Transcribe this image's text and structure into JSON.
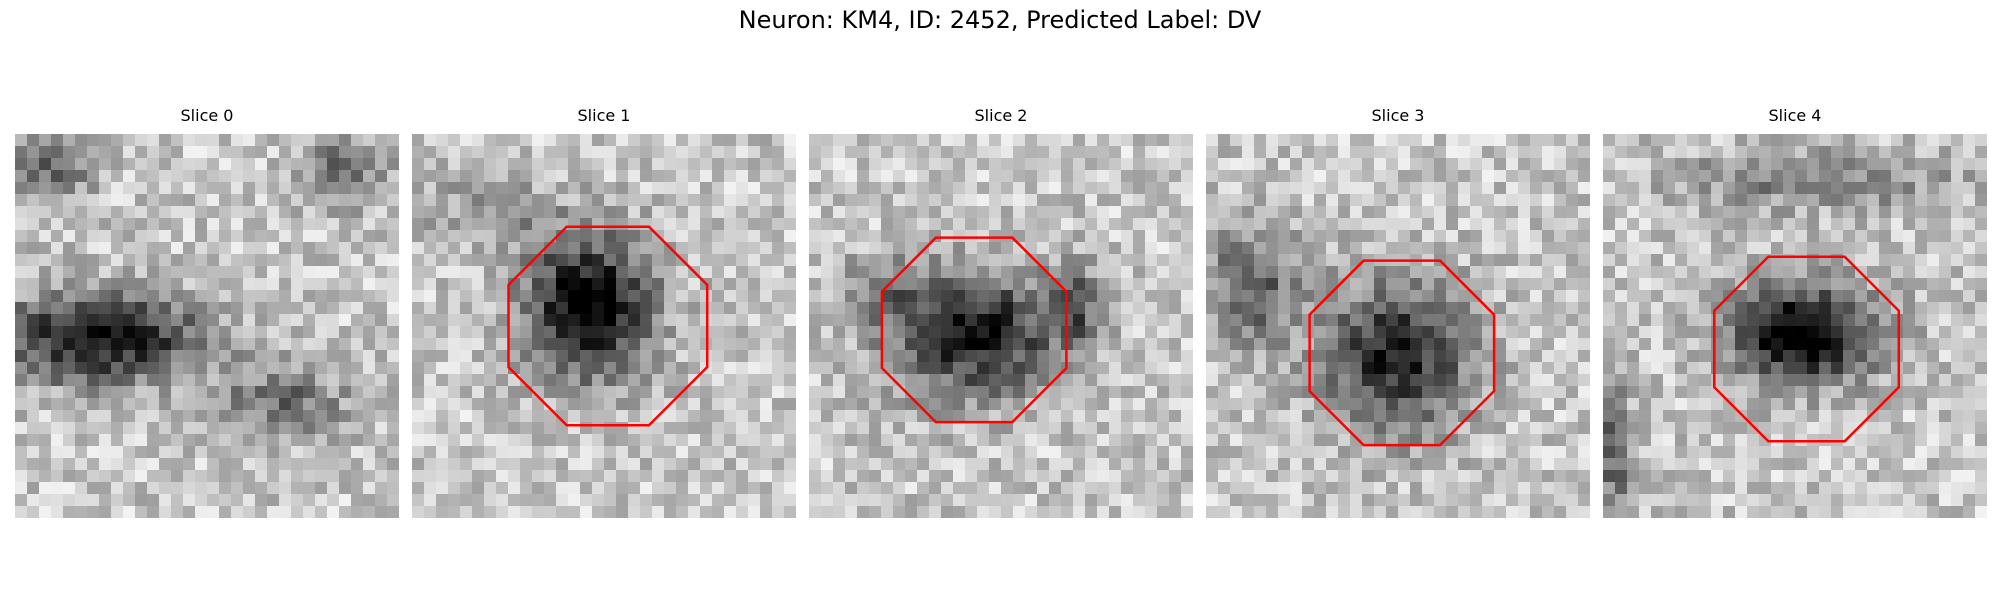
{
  "figure": {
    "title": "Neuron: KM4, ID: 2452, Predicted Label: DV",
    "outline_color": "#ff0000"
  },
  "panels": [
    {
      "title": "Slice 0",
      "has_outline": false
    },
    {
      "title": "Slice 1",
      "has_outline": true
    },
    {
      "title": "Slice 2",
      "has_outline": true
    },
    {
      "title": "Slice 3",
      "has_outline": true
    },
    {
      "title": "Slice 4",
      "has_outline": true
    }
  ]
}
